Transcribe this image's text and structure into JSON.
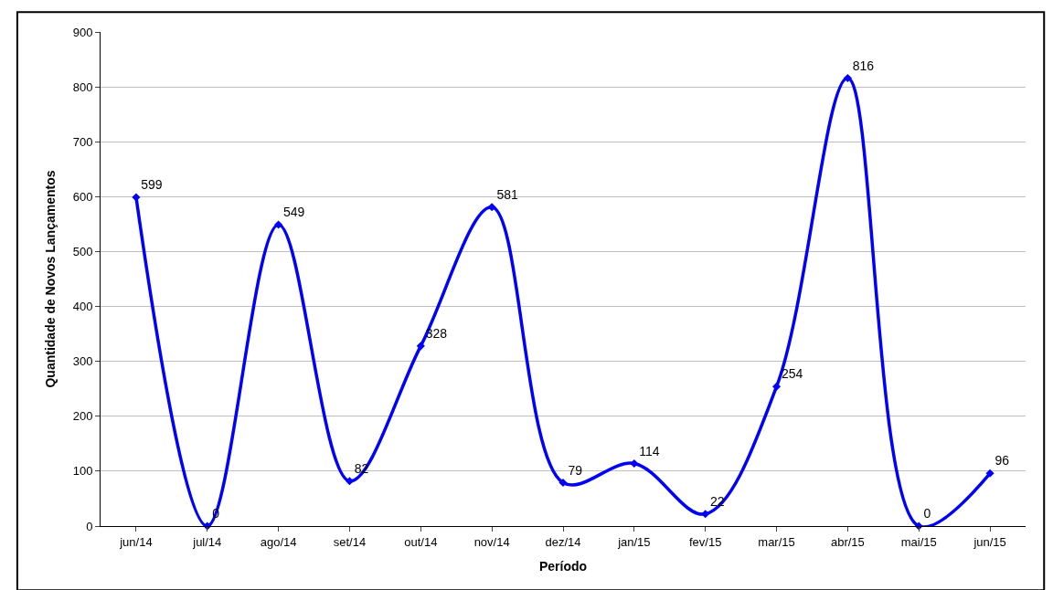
{
  "chart_data": {
    "type": "line",
    "xlabel": "Período",
    "ylabel": "Quantidade de Novos Lançamentos",
    "categories": [
      "jun/14",
      "jul/14",
      "ago/14",
      "set/14",
      "out/14",
      "nov/14",
      "dez/14",
      "jan/15",
      "fev/15",
      "mar/15",
      "abr/15",
      "mai/15",
      "jun/15"
    ],
    "series": [
      {
        "color": "#0000ff",
        "values": [
          599,
          0,
          549,
          82,
          328,
          581,
          79,
          114,
          22,
          254,
          816,
          0,
          96
        ]
      }
    ],
    "ylim": [
      0,
      900
    ],
    "yticks": [
      0,
      100,
      200,
      300,
      400,
      500,
      600,
      700,
      800,
      900
    ],
    "grid": "y",
    "marker": "diamond",
    "line_style": "solid",
    "data_labels": true,
    "legend": false
  }
}
